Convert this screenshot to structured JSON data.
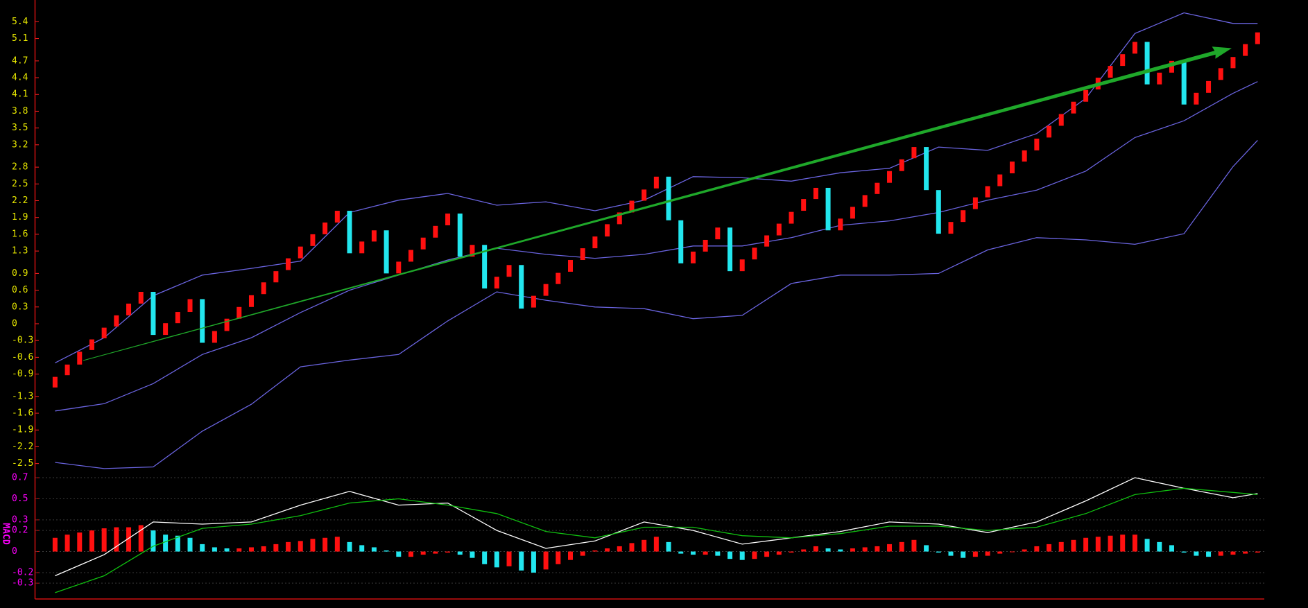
{
  "chart_data": [
    {
      "type": "candlestick",
      "up_color": "#ff1010",
      "down_color": "#22e6ee",
      "axis_color": "#e8e800",
      "tick_color": "#ff2020",
      "ylim": [
        -2.74,
        5.67
      ],
      "yticks": [
        5.4,
        5.1,
        4.7,
        4.4,
        4.1,
        3.8,
        3.5,
        3.2,
        2.8,
        2.5,
        2.2,
        1.9,
        1.6,
        1.3,
        0.9,
        0.6,
        0.3,
        0,
        -0.3,
        -0.6,
        -0.9,
        -1.3,
        -1.6,
        -1.9,
        -2.2,
        -2.5
      ],
      "open": [
        -1.14,
        -0.92,
        -0.73,
        -0.47,
        -0.26,
        -0.05,
        0.15,
        0.36,
        0.57,
        -0.2,
        0.01,
        0.21,
        0.44,
        -0.34,
        -0.13,
        0.09,
        0.3,
        0.53,
        0.74,
        0.96,
        1.17,
        1.39,
        1.6,
        1.81,
        2.02,
        1.26,
        1.47,
        1.67,
        0.9,
        1.11,
        1.33,
        1.54,
        1.76,
        1.97,
        1.2,
        1.41,
        0.63,
        0.84,
        1.05,
        0.29,
        0.5,
        0.71,
        0.93,
        1.14,
        1.35,
        1.56,
        1.78,
        1.99,
        2.2,
        2.42,
        2.63,
        1.85,
        1.08,
        1.29,
        1.51,
        1.72,
        0.94,
        1.15,
        1.38,
        1.58,
        1.79,
        2.02,
        2.23,
        2.43,
        1.67,
        1.88,
        2.09,
        2.32,
        2.52,
        2.73,
        2.96,
        3.16,
        2.39,
        1.61,
        1.82,
        2.05,
        2.26,
        2.46,
        2.69,
        2.9,
        3.1,
        3.33,
        3.54,
        3.76,
        3.97,
        4.19,
        4.4,
        4.61,
        4.83,
        5.04,
        4.28,
        4.49,
        4.7,
        3.92,
        4.13,
        4.36,
        4.57,
        4.79,
        5.0
      ],
      "close": [
        -0.95,
        -0.73,
        -0.5,
        -0.28,
        -0.07,
        0.15,
        0.36,
        0.57,
        -0.2,
        0.01,
        0.21,
        0.44,
        -0.34,
        -0.13,
        0.09,
        0.3,
        0.51,
        0.74,
        0.94,
        1.17,
        1.38,
        1.6,
        1.81,
        2.02,
        1.26,
        1.47,
        1.67,
        0.9,
        1.11,
        1.32,
        1.54,
        1.75,
        1.97,
        1.2,
        1.41,
        0.63,
        0.84,
        1.05,
        0.27,
        0.5,
        0.71,
        0.91,
        1.14,
        1.35,
        1.56,
        1.78,
        1.99,
        2.2,
        2.4,
        2.63,
        1.85,
        1.08,
        1.29,
        1.5,
        1.72,
        0.94,
        1.15,
        1.36,
        1.58,
        1.79,
        2.0,
        2.23,
        2.43,
        1.67,
        1.88,
        2.09,
        2.3,
        2.52,
        2.73,
        2.94,
        3.16,
        2.39,
        1.61,
        1.82,
        2.03,
        2.26,
        2.46,
        2.67,
        2.9,
        3.1,
        3.31,
        3.54,
        3.75,
        3.97,
        4.18,
        4.4,
        4.61,
        4.82,
        5.04,
        4.28,
        4.49,
        4.7,
        3.92,
        4.13,
        4.34,
        4.57,
        4.77,
        5.0,
        5.21
      ],
      "series": [
        {
          "color": "#6a64e0",
          "x": [
            0,
            4,
            8,
            12,
            16,
            20,
            24,
            28,
            32,
            36,
            40,
            44,
            48,
            52,
            56,
            60,
            64,
            68,
            72,
            76,
            80,
            84,
            88,
            92,
            96,
            98
          ],
          "values": [
            -0.7,
            -0.25,
            0.5,
            0.87,
            0.99,
            1.12,
            1.99,
            2.21,
            2.33,
            2.12,
            2.18,
            2.02,
            2.21,
            2.63,
            2.61,
            2.55,
            2.7,
            2.78,
            3.16,
            3.1,
            3.4,
            4.03,
            5.19,
            5.56,
            5.37,
            5.37
          ]
        },
        {
          "color": "#6a64e0",
          "x": [
            0,
            4,
            8,
            12,
            16,
            20,
            24,
            28,
            32,
            36,
            40,
            44,
            48,
            52,
            56,
            60,
            64,
            68,
            72,
            76,
            80,
            84,
            88,
            92,
            96,
            98
          ],
          "values": [
            -1.56,
            -1.43,
            -1.07,
            -0.55,
            -0.25,
            0.2,
            0.6,
            0.87,
            1.14,
            1.35,
            1.24,
            1.17,
            1.24,
            1.39,
            1.39,
            1.54,
            1.76,
            1.84,
            1.99,
            2.21,
            2.39,
            2.73,
            3.33,
            3.63,
            4.12,
            4.33
          ]
        },
        {
          "color": "#6a64e0",
          "x": [
            0,
            4,
            8,
            12,
            16,
            20,
            24,
            28,
            32,
            36,
            40,
            44,
            48,
            52,
            56,
            60,
            64,
            68,
            72,
            76,
            80,
            84,
            88,
            92,
            96,
            98
          ],
          "values": [
            -2.48,
            -2.59,
            -2.56,
            -1.92,
            -1.44,
            -0.77,
            -0.65,
            -0.55,
            0.05,
            0.57,
            0.42,
            0.3,
            0.27,
            0.09,
            0.15,
            0.72,
            0.87,
            0.87,
            0.9,
            1.32,
            1.54,
            1.5,
            1.42,
            1.61,
            2.81,
            3.28
          ]
        }
      ]
    },
    {
      "type": "macd",
      "y_label": "MACD",
      "up_color": "#ff1010",
      "down_color": "#22e6ee",
      "axis_color": "#ff00ff",
      "grid": true,
      "ylim": [
        -0.45,
        0.72
      ],
      "yticks": [
        0.7,
        0.5,
        0.3,
        0.2,
        0,
        -0.2,
        -0.3
      ],
      "values": [
        0.13,
        0.16,
        0.18,
        0.2,
        0.22,
        0.23,
        0.23,
        0.25,
        0.2,
        0.16,
        0.15,
        0.13,
        0.07,
        0.04,
        0.03,
        0.03,
        0.04,
        0.05,
        0.07,
        0.09,
        0.1,
        0.12,
        0.13,
        0.14,
        0.09,
        0.06,
        0.04,
        0.01,
        -0.05,
        -0.05,
        -0.03,
        -0.02,
        -0.01,
        -0.03,
        -0.06,
        -0.12,
        -0.15,
        -0.14,
        -0.18,
        -0.2,
        -0.17,
        -0.12,
        -0.08,
        -0.04,
        0.01,
        0.03,
        0.05,
        0.08,
        0.11,
        0.14,
        0.09,
        -0.02,
        -0.03,
        -0.03,
        -0.04,
        -0.07,
        -0.08,
        -0.07,
        -0.05,
        -0.03,
        -0.01,
        0.02,
        0.05,
        0.03,
        0.02,
        0.03,
        0.04,
        0.05,
        0.07,
        0.09,
        0.11,
        0.06,
        -0.01,
        -0.04,
        -0.06,
        -0.05,
        -0.04,
        -0.02,
        0.0,
        0.02,
        0.05,
        0.07,
        0.09,
        0.11,
        0.13,
        0.14,
        0.15,
        0.16,
        0.16,
        0.12,
        0.09,
        0.06,
        -0.01,
        -0.04,
        -0.05,
        -0.04,
        -0.03,
        -0.02,
        -0.01
      ],
      "series": [
        {
          "color": "#ffffff",
          "x": [
            0,
            4,
            8,
            12,
            16,
            20,
            24,
            28,
            32,
            36,
            40,
            44,
            48,
            52,
            56,
            60,
            64,
            68,
            72,
            76,
            80,
            84,
            88,
            92,
            96,
            98
          ],
          "values": [
            -0.23,
            -0.03,
            0.28,
            0.26,
            0.28,
            0.44,
            0.57,
            0.44,
            0.46,
            0.2,
            0.03,
            0.1,
            0.28,
            0.2,
            0.07,
            0.13,
            0.19,
            0.28,
            0.26,
            0.18,
            0.28,
            0.48,
            0.7,
            0.6,
            0.51,
            0.55
          ]
        },
        {
          "color": "#10c010",
          "x": [
            0,
            4,
            8,
            12,
            16,
            20,
            24,
            28,
            32,
            36,
            40,
            44,
            48,
            52,
            56,
            60,
            64,
            68,
            72,
            76,
            80,
            84,
            88,
            92,
            96,
            98
          ],
          "values": [
            -0.39,
            -0.23,
            0.05,
            0.22,
            0.26,
            0.34,
            0.46,
            0.5,
            0.44,
            0.36,
            0.19,
            0.13,
            0.23,
            0.23,
            0.15,
            0.13,
            0.17,
            0.24,
            0.24,
            0.2,
            0.23,
            0.36,
            0.54,
            0.6,
            0.56,
            0.54
          ]
        }
      ]
    }
  ]
}
